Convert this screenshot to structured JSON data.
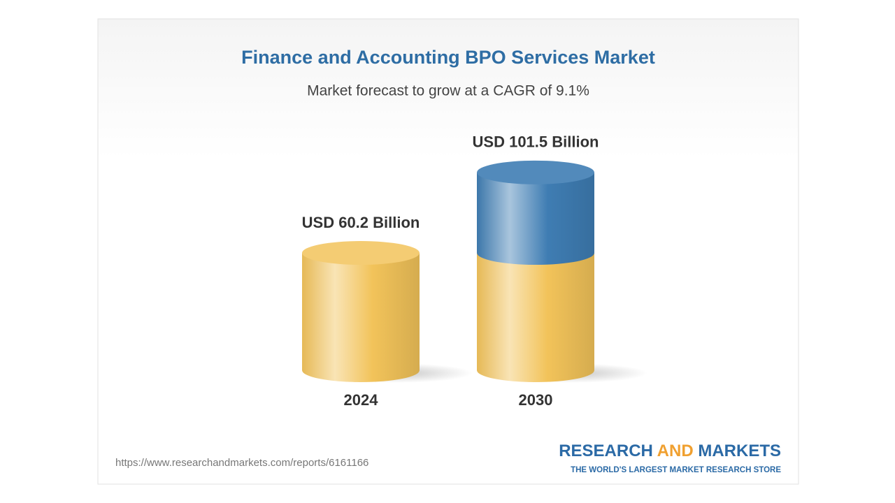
{
  "chart_data": {
    "type": "cylinder",
    "title": "Finance and Accounting BPO Services Market",
    "subtitle": "Market forecast to grow at a CAGR of 9.1%",
    "categories": [
      "2024",
      "2030"
    ],
    "values": [
      60.2,
      101.5
    ],
    "value_labels": [
      "USD 60.2 Billion",
      "USD 101.5 Billion"
    ],
    "color": "#f2c35a",
    "growth_color": "#3f7db3",
    "source": "https://www.researchandmarkets.com/reports/6161166",
    "brand": [
      "RESEARCH",
      "AND",
      "MARKETS"
    ],
    "tagline": "THE WORLD'S LARGEST MARKET RESEARCH STORE"
  }
}
